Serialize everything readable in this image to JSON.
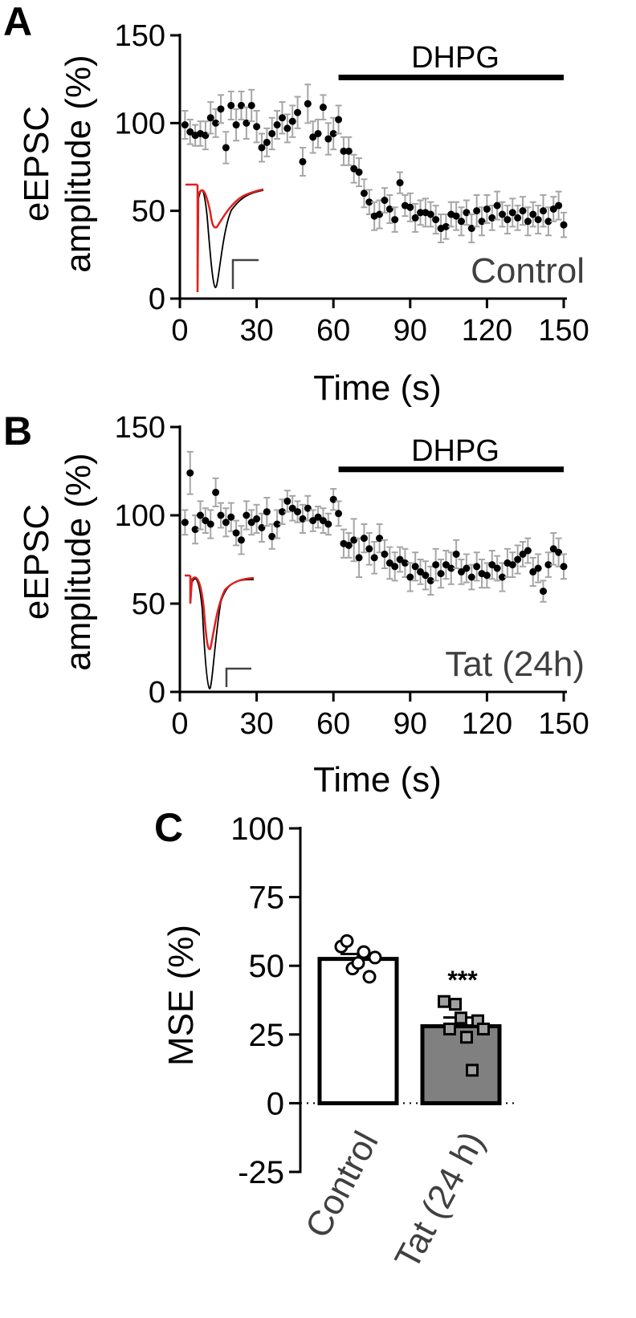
{
  "chart_data": [
    {
      "panel": "A",
      "type": "scatter",
      "ylabel_line1": "eEPSC",
      "ylabel_line2": "amplitude (%)",
      "xlabel": "Time (s)",
      "xlim": [
        0,
        150
      ],
      "ylim": [
        0,
        150
      ],
      "xticks": [
        "0",
        "30",
        "60",
        "90",
        "120",
        "150"
      ],
      "yticks": [
        "0",
        "50",
        "100",
        "150"
      ],
      "drug_label": "DHPG",
      "drug_range": [
        62,
        150
      ],
      "condition": "Control",
      "colors": {
        "points": "#000000",
        "error": "#a6a6a6",
        "trace_base": "#000000",
        "trace_drug": "#e02020"
      },
      "points": [
        [
          2,
          99,
          8
        ],
        [
          4,
          95,
          7
        ],
        [
          6,
          93,
          6
        ],
        [
          8,
          94,
          7
        ],
        [
          10,
          93,
          8
        ],
        [
          12,
          103,
          9
        ],
        [
          14,
          100,
          8
        ],
        [
          16,
          108,
          8
        ],
        [
          18,
          86,
          9
        ],
        [
          20,
          110,
          8
        ],
        [
          22,
          99,
          9
        ],
        [
          24,
          110,
          8
        ],
        [
          26,
          100,
          9
        ],
        [
          28,
          110,
          9
        ],
        [
          30,
          98,
          9
        ],
        [
          32,
          86,
          8
        ],
        [
          34,
          89,
          8
        ],
        [
          36,
          94,
          9
        ],
        [
          38,
          99,
          8
        ],
        [
          40,
          103,
          9
        ],
        [
          42,
          97,
          8
        ],
        [
          44,
          101,
          9
        ],
        [
          46,
          106,
          9
        ],
        [
          48,
          78,
          8
        ],
        [
          50,
          111,
          11
        ],
        [
          52,
          92,
          9
        ],
        [
          54,
          94,
          8
        ],
        [
          56,
          109,
          7
        ],
        [
          58,
          91,
          9
        ],
        [
          60,
          94,
          9
        ],
        [
          62,
          102,
          8
        ],
        [
          64,
          84,
          8
        ],
        [
          66,
          84,
          8
        ],
        [
          68,
          74,
          8
        ],
        [
          70,
          72,
          8
        ],
        [
          72,
          60,
          8
        ],
        [
          74,
          55,
          7
        ],
        [
          76,
          47,
          8
        ],
        [
          78,
          48,
          8
        ],
        [
          80,
          56,
          7
        ],
        [
          82,
          51,
          8
        ],
        [
          84,
          45,
          7
        ],
        [
          86,
          66,
          6
        ],
        [
          88,
          53,
          6
        ],
        [
          90,
          52,
          8
        ],
        [
          92,
          46,
          8
        ],
        [
          94,
          49,
          7
        ],
        [
          96,
          49,
          8
        ],
        [
          98,
          48,
          7
        ],
        [
          100,
          45,
          8
        ],
        [
          102,
          40,
          8
        ],
        [
          104,
          41,
          7
        ],
        [
          106,
          48,
          7
        ],
        [
          108,
          47,
          8
        ],
        [
          110,
          44,
          8
        ],
        [
          112,
          49,
          7
        ],
        [
          114,
          40,
          8
        ],
        [
          116,
          50,
          9
        ],
        [
          118,
          44,
          8
        ],
        [
          120,
          51,
          8
        ],
        [
          122,
          46,
          7
        ],
        [
          124,
          53,
          8
        ],
        [
          126,
          48,
          7
        ],
        [
          128,
          45,
          8
        ],
        [
          130,
          49,
          8
        ],
        [
          132,
          46,
          7
        ],
        [
          134,
          50,
          8
        ],
        [
          136,
          44,
          8
        ],
        [
          138,
          48,
          7
        ],
        [
          140,
          45,
          8
        ],
        [
          142,
          50,
          9
        ],
        [
          144,
          44,
          8
        ],
        [
          146,
          51,
          7
        ],
        [
          148,
          53,
          8
        ],
        [
          150,
          42,
          7
        ]
      ]
    },
    {
      "panel": "B",
      "type": "scatter",
      "ylabel_line1": "eEPSC",
      "ylabel_line2": "amplitude (%)",
      "xlabel": "Time (s)",
      "xlim": [
        0,
        150
      ],
      "ylim": [
        0,
        150
      ],
      "xticks": [
        "0",
        "30",
        "60",
        "90",
        "120",
        "150"
      ],
      "yticks": [
        "0",
        "50",
        "100",
        "150"
      ],
      "drug_label": "DHPG",
      "drug_range": [
        62,
        150
      ],
      "condition": "Tat (24h)",
      "colors": {
        "points": "#000000",
        "error": "#a6a6a6",
        "trace_base": "#000000",
        "trace_drug": "#e02020"
      },
      "points": [
        [
          2,
          96,
          7
        ],
        [
          4,
          124,
          12
        ],
        [
          6,
          92,
          8
        ],
        [
          8,
          100,
          8
        ],
        [
          10,
          97,
          7
        ],
        [
          12,
          95,
          8
        ],
        [
          14,
          113,
          8
        ],
        [
          16,
          100,
          7
        ],
        [
          18,
          96,
          8
        ],
        [
          20,
          99,
          8
        ],
        [
          22,
          90,
          7
        ],
        [
          24,
          86,
          8
        ],
        [
          26,
          100,
          8
        ],
        [
          28,
          96,
          7
        ],
        [
          30,
          98,
          8
        ],
        [
          32,
          93,
          8
        ],
        [
          34,
          102,
          8
        ],
        [
          36,
          88,
          7
        ],
        [
          38,
          95,
          8
        ],
        [
          40,
          102,
          7
        ],
        [
          42,
          108,
          6
        ],
        [
          44,
          104,
          7
        ],
        [
          46,
          102,
          6
        ],
        [
          48,
          98,
          8
        ],
        [
          50,
          104,
          7
        ],
        [
          52,
          97,
          6
        ],
        [
          54,
          99,
          6
        ],
        [
          56,
          97,
          7
        ],
        [
          58,
          95,
          6
        ],
        [
          60,
          109,
          6
        ],
        [
          62,
          101,
          7
        ],
        [
          64,
          84,
          8
        ],
        [
          66,
          83,
          7
        ],
        [
          68,
          86,
          12
        ],
        [
          70,
          76,
          11
        ],
        [
          72,
          87,
          8
        ],
        [
          74,
          81,
          9
        ],
        [
          76,
          76,
          9
        ],
        [
          78,
          87,
          8
        ],
        [
          80,
          78,
          8
        ],
        [
          82,
          73,
          9
        ],
        [
          84,
          71,
          8
        ],
        [
          86,
          75,
          7
        ],
        [
          88,
          73,
          8
        ],
        [
          90,
          65,
          8
        ],
        [
          92,
          71,
          8
        ],
        [
          94,
          68,
          7
        ],
        [
          96,
          66,
          8
        ],
        [
          98,
          63,
          8
        ],
        [
          100,
          72,
          9
        ],
        [
          102,
          67,
          8
        ],
        [
          104,
          72,
          8
        ],
        [
          106,
          70,
          9
        ],
        [
          108,
          78,
          8
        ],
        [
          110,
          68,
          7
        ],
        [
          112,
          70,
          8
        ],
        [
          114,
          65,
          7
        ],
        [
          116,
          71,
          8
        ],
        [
          118,
          67,
          8
        ],
        [
          120,
          66,
          7
        ],
        [
          122,
          72,
          8
        ],
        [
          124,
          70,
          7
        ],
        [
          126,
          65,
          8
        ],
        [
          128,
          73,
          8
        ],
        [
          130,
          72,
          7
        ],
        [
          132,
          75,
          8
        ],
        [
          134,
          78,
          7
        ],
        [
          136,
          80,
          7
        ],
        [
          138,
          68,
          8
        ],
        [
          140,
          70,
          8
        ],
        [
          142,
          57,
          6
        ],
        [
          144,
          72,
          7
        ],
        [
          146,
          81,
          9
        ],
        [
          148,
          79,
          8
        ],
        [
          150,
          71,
          7
        ]
      ]
    },
    {
      "panel": "C",
      "type": "bar",
      "ylabel": "MSE (%)",
      "ylim": [
        -25,
        100
      ],
      "yticks": [
        "-25",
        "0",
        "25",
        "50",
        "75",
        "100"
      ],
      "categories": [
        "Control",
        "Tat (24 h)"
      ],
      "values": [
        52.5,
        28
      ],
      "errors": [
        1.8,
        3.2
      ],
      "significance": "***",
      "colors": {
        "control_fill": "#ffffff",
        "tat_fill": "#808080",
        "stroke": "#000000"
      },
      "individual_points": [
        [
          57,
          49,
          55,
          53,
          59,
          51,
          46
        ],
        [
          37,
          36,
          24,
          30,
          27,
          31,
          12,
          27
        ]
      ]
    }
  ]
}
